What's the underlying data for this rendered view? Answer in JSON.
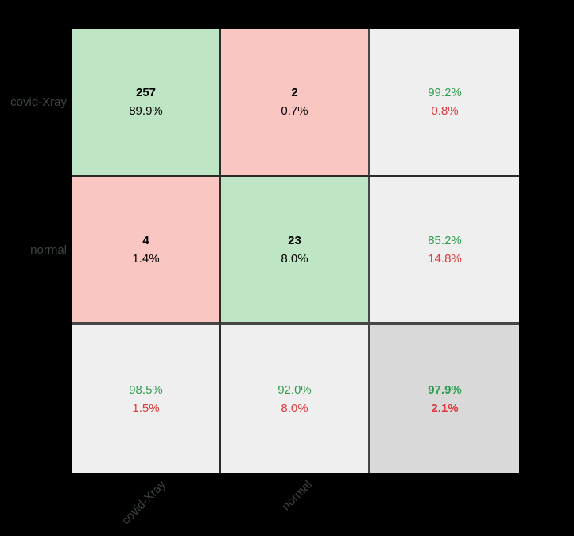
{
  "chart_data": {
    "type": "heatmap",
    "subtype": "confusion-matrix",
    "title": "",
    "classes": [
      "covid-Xray",
      "normal"
    ],
    "actual_axis_labels": [
      "covid-Xray",
      "normal"
    ],
    "predicted_axis_labels": [
      "covid-Xray",
      "normal"
    ],
    "matrix_counts": [
      [
        257,
        2
      ],
      [
        4,
        23
      ]
    ],
    "matrix_percent_of_total": [
      "89.9%",
      "0.7%",
      "1.4%",
      "8.0%"
    ],
    "row_summary": [
      {
        "correct": "99.2%",
        "incorrect": "0.8%"
      },
      {
        "correct": "85.2%",
        "incorrect": "14.8%"
      }
    ],
    "column_summary": [
      {
        "correct": "98.5%",
        "incorrect": "1.5%"
      },
      {
        "correct": "92.0%",
        "incorrect": "8.0%"
      }
    ],
    "overall": {
      "accuracy": "97.9%",
      "error": "2.1%"
    },
    "legend": "none",
    "grid": "cell borders, thick separators before summary row/column"
  },
  "colors": {
    "canvas_bg": "#000000",
    "diag_bg": "#bee5c4",
    "off_diag_bg": "#f9c6c2",
    "summary_bg": "#efefef",
    "total_bg": "#d9d9d9",
    "good_text": "#2f9e4e",
    "bad_text": "#dd3b3e",
    "count_text": "#000000",
    "axis_label_text": "#3d4343",
    "thin_line": "#2b2b2b",
    "thick_line": "#454545"
  },
  "matrix": {
    "row_labels": [
      "covid-Xray",
      "normal"
    ],
    "col_labels": [
      "covid-Xray",
      "normal"
    ]
  },
  "cells": {
    "r0c0": {
      "count": "257",
      "pct": "89.9%"
    },
    "r0c1": {
      "count": "2",
      "pct": "0.7%"
    },
    "r0c2": {
      "good": "99.2%",
      "bad": "0.8%"
    },
    "r1c0": {
      "count": "4",
      "pct": "1.4%"
    },
    "r1c1": {
      "count": "23",
      "pct": "8.0%"
    },
    "r1c2": {
      "good": "85.2%",
      "bad": "14.8%"
    },
    "r2c0": {
      "good": "98.5%",
      "bad": "1.5%"
    },
    "r2c1": {
      "good": "92.0%",
      "bad": "8.0%"
    },
    "r2c2": {
      "good": "97.9%",
      "bad": "2.1%"
    }
  }
}
